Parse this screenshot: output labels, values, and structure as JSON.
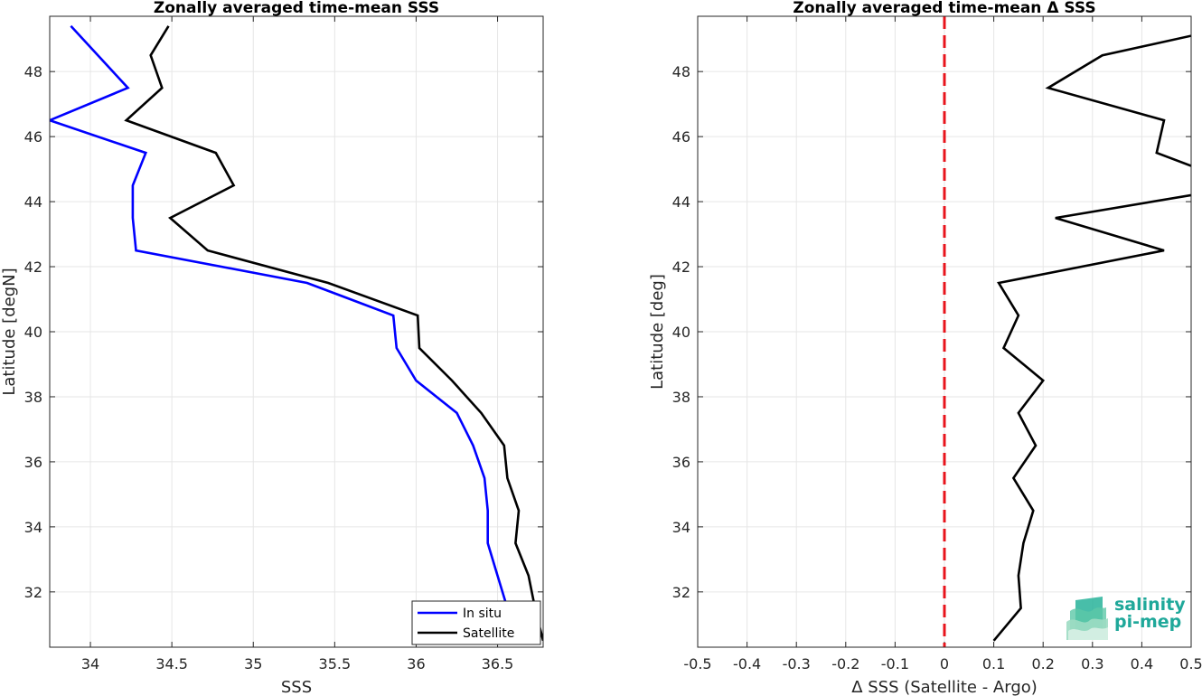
{
  "chart_data": [
    {
      "type": "line",
      "title": "Zonally averaged time-mean SSS",
      "xlabel": "SSS",
      "ylabel": "Latitude [degN]",
      "xlim": [
        33.75,
        36.78
      ],
      "ylim": [
        30.3,
        49.7
      ],
      "xticks": [
        "34",
        "34.5",
        "35",
        "35.5",
        "36",
        "36.5"
      ],
      "yticks": [
        "32",
        "34",
        "36",
        "38",
        "40",
        "42",
        "44",
        "46",
        "48"
      ],
      "grid": true,
      "legend_position": "bottom-right",
      "series": [
        {
          "name": "In situ",
          "color": "#0000ff",
          "points": [
            [
              36.66,
              30.5
            ],
            [
              36.56,
              31.5
            ],
            [
              36.5,
              32.5
            ],
            [
              36.44,
              33.5
            ],
            [
              36.44,
              34.5
            ],
            [
              36.42,
              35.5
            ],
            [
              36.35,
              36.5
            ],
            [
              36.25,
              37.5
            ],
            [
              36.0,
              38.5
            ],
            [
              35.88,
              39.5
            ],
            [
              35.86,
              40.5
            ],
            [
              35.33,
              41.5
            ],
            [
              34.28,
              42.5
            ],
            [
              34.26,
              43.5
            ],
            [
              34.26,
              44.5
            ],
            [
              34.34,
              45.5
            ],
            [
              33.75,
              46.5
            ],
            [
              34.23,
              47.5
            ],
            [
              33.88,
              49.4
            ]
          ]
        },
        {
          "name": "Satellite",
          "color": "#000000",
          "points": [
            [
              36.78,
              30.5
            ],
            [
              36.73,
              31.5
            ],
            [
              36.69,
              32.5
            ],
            [
              36.61,
              33.5
            ],
            [
              36.63,
              34.5
            ],
            [
              36.56,
              35.5
            ],
            [
              36.54,
              36.5
            ],
            [
              36.4,
              37.5
            ],
            [
              36.22,
              38.5
            ],
            [
              36.02,
              39.5
            ],
            [
              36.01,
              40.5
            ],
            [
              35.46,
              41.5
            ],
            [
              34.72,
              42.5
            ],
            [
              34.49,
              43.5
            ],
            [
              34.88,
              44.5
            ],
            [
              34.77,
              45.5
            ],
            [
              34.22,
              46.5
            ],
            [
              34.44,
              47.5
            ],
            [
              34.37,
              48.5
            ],
            [
              34.48,
              49.4
            ]
          ]
        }
      ]
    },
    {
      "type": "line",
      "title": "Zonally averaged time-mean Δ SSS",
      "xlabel": "Δ SSS (Satellite - Argo)",
      "ylabel": "Latitude [deg]",
      "xlim": [
        -0.5,
        0.5
      ],
      "ylim": [
        30.3,
        49.7
      ],
      "xticks": [
        "-0.5",
        "-0.4",
        "-0.3",
        "-0.2",
        "-0.1",
        "0",
        "0.1",
        "0.2",
        "0.3",
        "0.4",
        "0.5"
      ],
      "yticks": [
        "32",
        "34",
        "36",
        "38",
        "40",
        "42",
        "44",
        "46",
        "48"
      ],
      "grid": true,
      "reference_line": {
        "x": 0,
        "color": "#e8141c",
        "style": "dashed"
      },
      "series": [
        {
          "color": "#000000",
          "points": [
            [
              0.1,
              30.5
            ],
            [
              0.155,
              31.5
            ],
            [
              0.15,
              32.5
            ],
            [
              0.16,
              33.5
            ],
            [
              0.18,
              34.5
            ],
            [
              0.14,
              35.5
            ],
            [
              0.185,
              36.5
            ],
            [
              0.15,
              37.5
            ],
            [
              0.2,
              38.5
            ],
            [
              0.12,
              39.5
            ],
            [
              0.15,
              40.5
            ],
            [
              0.11,
              41.5
            ],
            [
              0.445,
              42.5
            ],
            [
              0.225,
              43.5
            ],
            [
              0.5,
              44.2
            ]
          ]
        },
        {
          "color": "#000000",
          "points": [
            [
              0.5,
              45.1
            ],
            [
              0.43,
              45.5
            ],
            [
              0.445,
              46.5
            ],
            [
              0.21,
              47.5
            ],
            [
              0.32,
              48.5
            ],
            [
              0.5,
              49.1
            ]
          ]
        }
      ]
    }
  ],
  "logo": {
    "line1": "salinity",
    "line2": "pi-mep",
    "color": "#1fa89a"
  }
}
